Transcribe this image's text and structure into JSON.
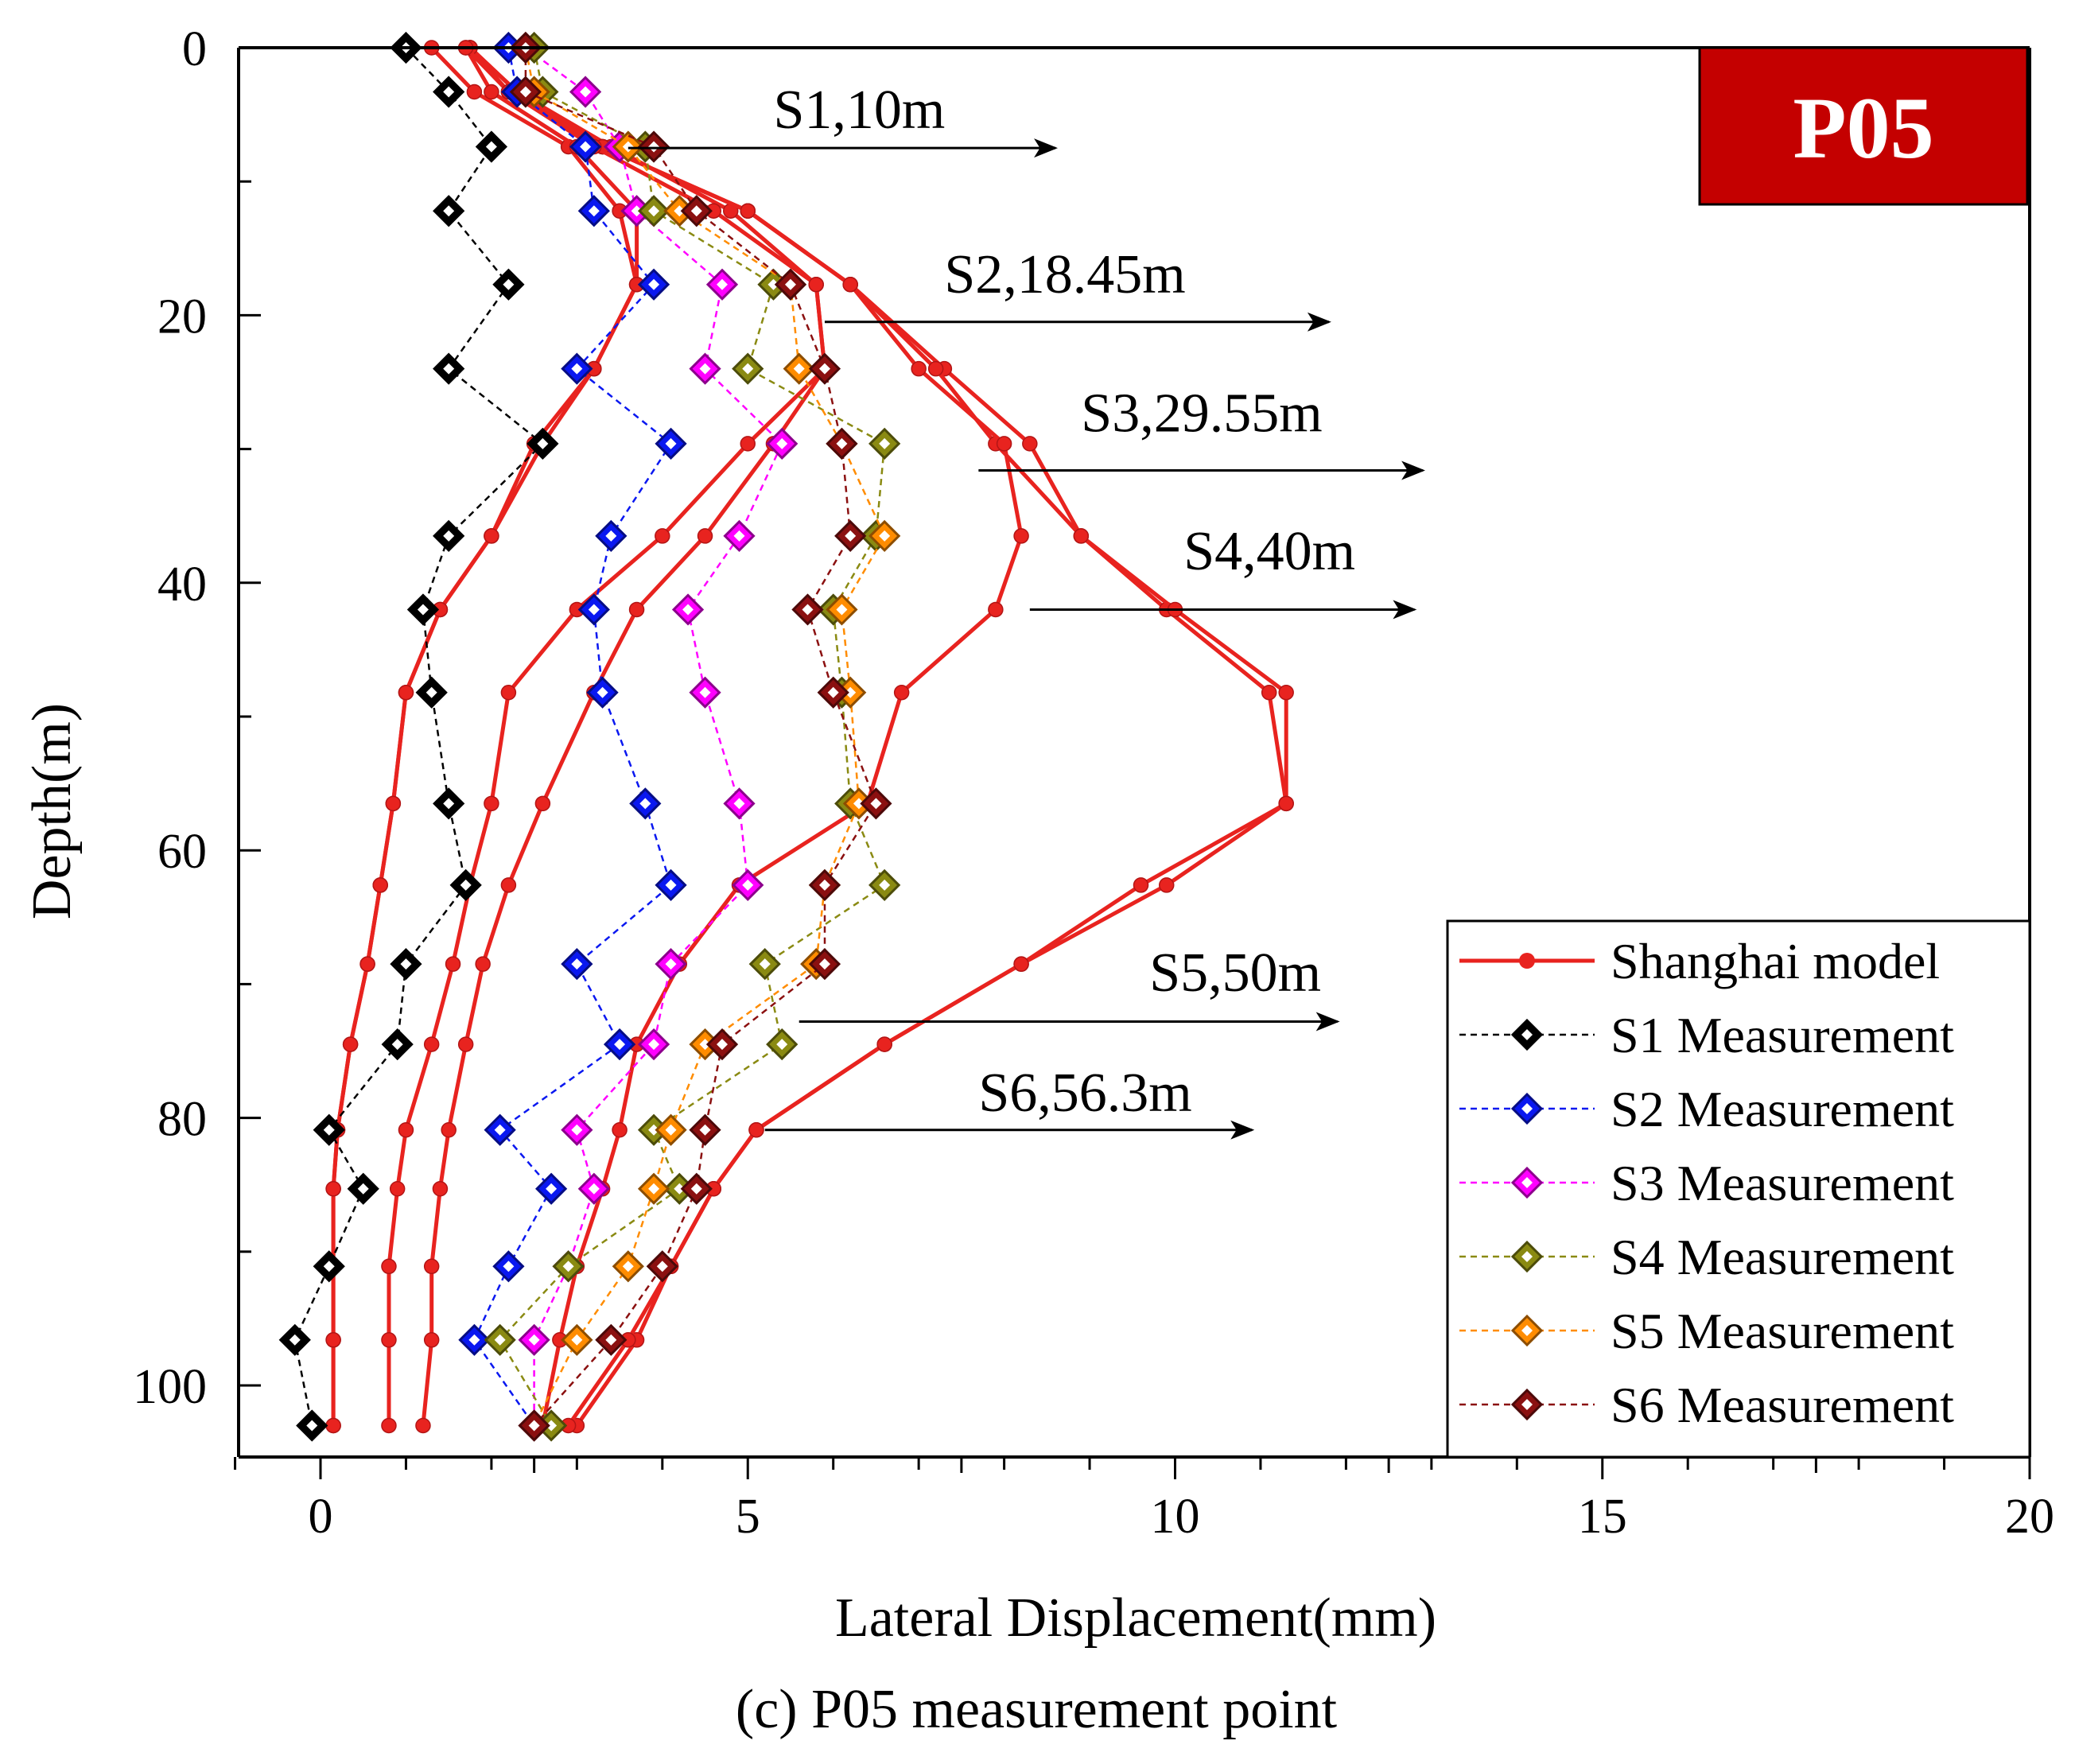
{
  "chart_data": {
    "type": "line",
    "badge": "P05",
    "caption_letter": "(c)",
    "caption_text": " P05 measurement point",
    "xlabel": "Lateral Displacement(mm)",
    "ylabel": "Depth(m)",
    "xlim": [
      -1,
      20
    ],
    "ylim": [
      105,
      0
    ],
    "x_ticks": [
      0,
      5,
      10,
      15,
      20
    ],
    "y_ticks": [
      0,
      20,
      40,
      60,
      80,
      100
    ],
    "colors": {
      "model": "#e8231f",
      "S1": "#000000",
      "S2": "#0a18f0",
      "S3": "#ff00ff",
      "S4": "#8a8a12",
      "S5": "#ff8c00",
      "S6": "#8b1010",
      "badge": "#c40000"
    },
    "depths": [
      0,
      3.3,
      7.4,
      12.2,
      17.7,
      24,
      29.6,
      36.5,
      42,
      48.2,
      56.5,
      62.6,
      68.5,
      74.5,
      80.9,
      85.3,
      91.1,
      96.6,
      103
    ],
    "model_series": [
      {
        "name": "Shanghai model (S1)",
        "x": [
          1.3,
          1.8,
          2.9,
          3.5,
          3.7,
          3.2,
          2.6,
          2.0,
          1.4,
          1.0,
          0.85,
          0.7,
          0.55,
          0.35,
          0.2,
          0.15,
          0.15,
          0.15,
          0.15
        ]
      },
      {
        "name": "Shanghai model (S2)",
        "x": [
          1.7,
          2.0,
          3.0,
          3.7,
          3.7,
          3.2,
          2.5,
          2.0,
          1.4,
          1.0,
          0.85,
          0.7,
          0.55,
          0.35,
          0.2,
          0.15,
          0.15,
          0.15,
          0.15
        ]
      },
      {
        "name": "Shanghai model (S3)",
        "x": [
          1.75,
          2.3,
          3.4,
          4.8,
          5.8,
          5.9,
          5.0,
          4.0,
          3.0,
          2.2,
          2.0,
          1.75,
          1.55,
          1.3,
          1.0,
          0.9,
          0.8,
          0.8,
          0.8
        ]
      },
      {
        "name": "Shanghai model (S4)",
        "x": [
          1.75,
          2.3,
          3.3,
          5.0,
          6.2,
          7.3,
          8.3,
          8.9,
          9.9,
          11.1,
          11.3,
          9.9,
          8.2,
          6.6,
          5.1,
          4.6,
          4.1,
          3.7,
          3.0
        ]
      },
      {
        "name": "Shanghai model (S5)",
        "x": [
          1.75,
          2.3,
          3.3,
          5.0,
          6.2,
          7.2,
          7.9,
          8.9,
          10.0,
          11.3,
          11.3,
          9.6,
          8.2,
          6.6,
          5.1,
          4.6,
          4.1,
          3.6,
          2.9
        ]
      },
      {
        "name": "Shanghai model (S6)",
        "x": [
          1.75,
          2.2,
          3.3,
          5.0,
          6.2,
          7.0,
          8.0,
          8.2,
          7.9,
          6.8,
          6.4,
          4.9,
          4.2,
          3.7,
          3.5,
          3.3,
          3.0,
          2.8,
          2.6
        ]
      },
      {
        "name": "Shanghai model (S7)",
        "x": [
          1.7,
          2.2,
          3.2,
          4.6,
          5.8,
          5.9,
          5.3,
          4.5,
          3.7,
          3.2,
          2.6,
          2.2,
          1.9,
          1.7,
          1.5,
          1.4,
          1.3,
          1.3,
          1.2
        ]
      }
    ],
    "measurements": [
      {
        "key": "S1",
        "name": "S1 Measurement",
        "x": [
          1.0,
          1.5,
          2.0,
          1.5,
          2.2,
          1.5,
          2.6,
          1.5,
          1.2,
          1.3,
          1.5,
          1.7,
          1.0,
          0.9,
          0.1,
          0.5,
          0.1,
          -0.3,
          -0.1
        ]
      },
      {
        "key": "S2",
        "name": "S2 Measurement",
        "x": [
          2.2,
          2.3,
          3.1,
          3.2,
          3.9,
          3.0,
          4.1,
          3.4,
          3.2,
          3.3,
          3.8,
          4.1,
          3.0,
          3.5,
          2.1,
          2.7,
          2.2,
          1.8,
          2.5
        ]
      },
      {
        "key": "S3",
        "name": "S3 Measurement",
        "x": [
          2.4,
          3.1,
          3.5,
          3.7,
          4.7,
          4.5,
          5.4,
          4.9,
          4.3,
          4.5,
          4.9,
          5.0,
          4.1,
          3.9,
          3.0,
          3.2,
          2.9,
          2.5,
          2.5
        ]
      },
      {
        "key": "S4",
        "name": "S4 Measurement",
        "x": [
          2.5,
          2.6,
          3.8,
          3.9,
          5.3,
          5.0,
          6.6,
          6.5,
          6.0,
          6.1,
          6.2,
          6.6,
          5.2,
          5.4,
          3.9,
          4.2,
          2.9,
          2.1,
          2.7
        ]
      },
      {
        "key": "S5",
        "name": "S5 Measurement",
        "x": [
          2.4,
          2.5,
          3.6,
          4.2,
          5.5,
          5.6,
          6.1,
          6.6,
          6.1,
          6.2,
          6.3,
          5.9,
          5.8,
          4.5,
          4.1,
          3.9,
          3.6,
          3.0,
          2.5
        ]
      },
      {
        "key": "S6",
        "name": "S6 Measurement",
        "x": [
          2.4,
          2.4,
          3.9,
          4.4,
          5.5,
          5.9,
          6.1,
          6.2,
          5.7,
          6.0,
          6.5,
          5.9,
          5.9,
          4.7,
          4.5,
          4.4,
          4.0,
          3.4,
          2.5
        ]
      }
    ],
    "annotations": [
      {
        "label": "S1,10m",
        "label_x": 5.3,
        "label_y": 6.0,
        "arrow_x0": 3.6,
        "arrow_x1": 8.6,
        "arrow_y": 7.5
      },
      {
        "label": "S2,18.45m",
        "label_x": 7.3,
        "label_y": 18.3,
        "arrow_x0": 5.9,
        "arrow_x1": 11.8,
        "arrow_y": 20.5
      },
      {
        "label": "S3,29.55m",
        "label_x": 8.9,
        "label_y": 28.7,
        "arrow_x0": 7.7,
        "arrow_x1": 12.9,
        "arrow_y": 31.6
      },
      {
        "label": "S4,40m",
        "label_x": 10.1,
        "label_y": 39.0,
        "arrow_x0": 8.3,
        "arrow_x1": 12.8,
        "arrow_y": 42.0
      },
      {
        "label": "S5,50m",
        "label_x": 9.7,
        "label_y": 70.5,
        "arrow_x0": 5.6,
        "arrow_x1": 11.9,
        "arrow_y": 72.8
      },
      {
        "label": "S6,56.3m",
        "label_x": 7.7,
        "label_y": 79.5,
        "arrow_x0": 5.2,
        "arrow_x1": 10.9,
        "arrow_y": 80.9
      }
    ],
    "legend": {
      "position": "bottom-right",
      "items": [
        {
          "key": "model",
          "label": "Shanghai model",
          "style": "solid-dot"
        },
        {
          "key": "S1",
          "label": "S1 Measurement",
          "style": "dashed-diamond"
        },
        {
          "key": "S2",
          "label": "S2 Measurement",
          "style": "dashed-diamond"
        },
        {
          "key": "S3",
          "label": "S3 Measurement",
          "style": "dashed-diamond"
        },
        {
          "key": "S4",
          "label": "S4 Measurement",
          "style": "dashed-diamond"
        },
        {
          "key": "S5",
          "label": "S5 Measurement",
          "style": "dashed-diamond"
        },
        {
          "key": "S6",
          "label": "S6 Measurement",
          "style": "dashed-diamond"
        }
      ]
    }
  }
}
